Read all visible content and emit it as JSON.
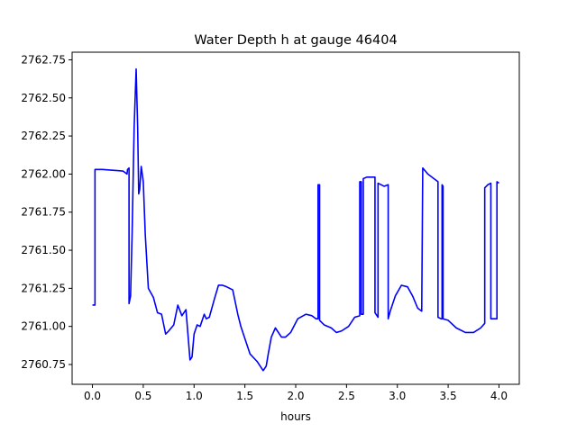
{
  "chart_data": {
    "type": "line",
    "title": "Water Depth h at gauge 46404",
    "xlabel": "hours",
    "ylabel": "",
    "xlim": [
      -0.2,
      4.2
    ],
    "ylim": [
      2760.62,
      2762.8
    ],
    "grid": false,
    "line_color": "#0000ff",
    "xticks": [
      0.0,
      0.5,
      1.0,
      1.5,
      2.0,
      2.5,
      3.0,
      3.5,
      4.0
    ],
    "xtick_labels": [
      "0.0",
      "0.5",
      "1.0",
      "1.5",
      "2.0",
      "2.5",
      "3.0",
      "3.5",
      "4.0"
    ],
    "yticks": [
      2760.75,
      2761.0,
      2761.25,
      2761.5,
      2761.75,
      2762.0,
      2762.25,
      2762.5,
      2762.75
    ],
    "ytick_labels": [
      "2760.75",
      "2761.00",
      "2761.25",
      "2761.50",
      "2761.75",
      "2762.00",
      "2762.25",
      "2762.50",
      "2762.75"
    ],
    "series": [
      {
        "x": [
          0.0,
          0.025,
          0.025,
          0.1,
          0.2,
          0.3,
          0.34,
          0.345,
          0.36,
          0.36,
          0.375,
          0.39,
          0.41,
          0.43,
          0.445,
          0.455,
          0.465,
          0.48,
          0.5,
          0.52,
          0.55,
          0.6,
          0.64,
          0.68,
          0.72,
          0.75,
          0.8,
          0.84,
          0.88,
          0.92,
          0.96,
          0.98,
          1.0,
          1.03,
          1.06,
          1.1,
          1.12,
          1.15,
          1.2,
          1.24,
          1.28,
          1.32,
          1.38,
          1.43,
          1.46,
          1.5,
          1.55,
          1.62,
          1.68,
          1.71,
          1.73,
          1.76,
          1.8,
          1.86,
          1.9,
          1.95,
          2.02,
          2.1,
          2.16,
          2.2,
          2.22,
          2.22,
          2.225,
          2.235,
          2.235,
          2.28,
          2.35,
          2.4,
          2.45,
          2.52,
          2.58,
          2.63,
          2.63,
          2.64,
          2.645,
          2.645,
          2.66,
          2.665,
          2.665,
          2.7,
          2.78,
          2.78,
          2.81,
          2.81,
          2.87,
          2.91,
          2.91,
          2.93,
          2.98,
          3.04,
          3.1,
          3.15,
          3.2,
          3.24,
          3.25,
          3.25,
          3.3,
          3.36,
          3.4,
          3.4,
          3.43,
          3.44,
          3.44,
          3.45,
          3.45,
          3.5,
          3.58,
          3.67,
          3.75,
          3.82,
          3.86,
          3.86,
          3.89,
          3.92,
          3.92,
          3.98,
          3.98,
          4.0
        ],
        "y": [
          2761.14,
          2761.14,
          2762.03,
          2762.03,
          2762.025,
          2762.02,
          2762.0,
          2762.03,
          2762.04,
          2761.15,
          2761.2,
          2761.6,
          2762.3,
          2762.69,
          2762.3,
          2761.87,
          2761.9,
          2762.05,
          2761.95,
          2761.6,
          2761.25,
          2761.19,
          2761.09,
          2761.08,
          2760.95,
          2760.97,
          2761.01,
          2761.14,
          2761.07,
          2761.11,
          2760.78,
          2760.8,
          2760.95,
          2761.01,
          2761.0,
          2761.08,
          2761.05,
          2761.06,
          2761.18,
          2761.27,
          2761.27,
          2761.26,
          2761.24,
          2761.08,
          2761.0,
          2760.92,
          2760.82,
          2760.77,
          2760.71,
          2760.74,
          2760.82,
          2760.93,
          2760.99,
          2760.93,
          2760.93,
          2760.96,
          2761.05,
          2761.08,
          2761.07,
          2761.05,
          2761.05,
          2761.93,
          2761.93,
          2761.93,
          2761.04,
          2761.01,
          2760.99,
          2760.96,
          2760.97,
          2761.0,
          2761.06,
          2761.07,
          2761.95,
          2761.95,
          2761.95,
          2761.08,
          2761.08,
          2761.08,
          2761.97,
          2761.98,
          2761.98,
          2761.09,
          2761.06,
          2761.94,
          2761.92,
          2761.93,
          2761.05,
          2761.1,
          2761.2,
          2761.27,
          2761.26,
          2761.2,
          2761.12,
          2761.1,
          2762.04,
          2762.04,
          2762.0,
          2761.97,
          2761.95,
          2761.06,
          2761.05,
          2761.05,
          2761.93,
          2761.92,
          2761.05,
          2761.04,
          2760.99,
          2760.96,
          2760.96,
          2760.99,
          2761.02,
          2761.91,
          2761.93,
          2761.94,
          2761.05,
          2761.05,
          2761.95,
          2761.94
        ]
      }
    ]
  }
}
